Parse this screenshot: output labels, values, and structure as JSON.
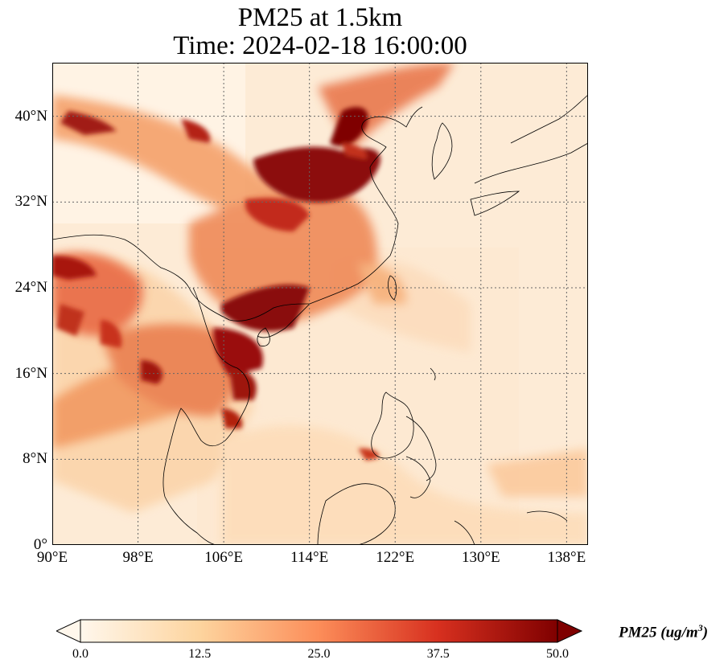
{
  "title_line1": "PM25 at 1.5km",
  "title_line2": "Time: 2024-02-18 16:00:00",
  "map": {
    "extent": {
      "lon": [
        90,
        140
      ],
      "lat": [
        0,
        45
      ]
    },
    "lat_ticks": [
      {
        "value": 0,
        "label": "0°"
      },
      {
        "value": 8,
        "label": "8°N"
      },
      {
        "value": 16,
        "label": "16°N"
      },
      {
        "value": 24,
        "label": "24°N"
      },
      {
        "value": 32,
        "label": "32°N"
      },
      {
        "value": 40,
        "label": "40°N"
      }
    ],
    "lon_ticks": [
      {
        "value": 90,
        "label": "90°E"
      },
      {
        "value": 98,
        "label": "98°E"
      },
      {
        "value": 106,
        "label": "106°E"
      },
      {
        "value": 114,
        "label": "114°E"
      },
      {
        "value": 122,
        "label": "122°E"
      },
      {
        "value": 130,
        "label": "130°E"
      },
      {
        "value": 138,
        "label": "138°E"
      }
    ],
    "gridlines": true,
    "colormap": "OrRd",
    "pollution_regions": [
      {
        "name": "north-china-plain",
        "level": 0.9
      },
      {
        "name": "northwest-band",
        "level": 0.75
      },
      {
        "name": "yangtze-basin",
        "level": 0.7
      },
      {
        "name": "south-china-gulf-of-tonkin",
        "level": 0.9
      },
      {
        "name": "indochina",
        "level": 0.7
      },
      {
        "name": "myanmar-india",
        "level": 0.8
      }
    ]
  },
  "colorbar": {
    "min": 0.0,
    "max": 50.0,
    "extend": "both",
    "ticks": [
      "0.0",
      "12.5",
      "25.0",
      "37.5",
      "50.0"
    ],
    "label_main": "PM25 (ug/m",
    "label_sup": "3",
    "label_end": ")",
    "colors": [
      "#fff7ec",
      "#fdd49e",
      "#fc8d59",
      "#d7301f",
      "#7f0000"
    ]
  }
}
